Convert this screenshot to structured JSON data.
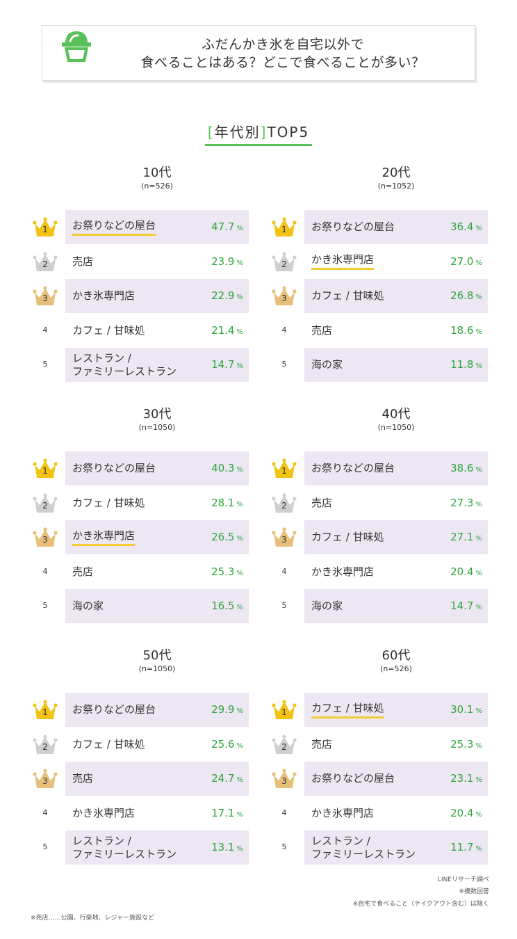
{
  "header": {
    "title_line1": "ふだんかき氷を自宅以外で",
    "title_line2": "食べることはある？どこで食べることが多い？",
    "icon": "shaved-ice-icon"
  },
  "subtitle": {
    "open": "[",
    "text": "年代別",
    "close": "]",
    "suffix": "TOP5"
  },
  "colors": {
    "accent_green": "#5ac05a",
    "value_green": "#2ba63a",
    "row_shade": "#ede6f3",
    "highlight_underline": "#f2cc30",
    "crown_gold": "#f2c315",
    "crown_silver": "#cfcfcf",
    "crown_bronze": "#e6c07a"
  },
  "chart_data": [
    {
      "type": "table",
      "title": "10代",
      "n": "(n=526)",
      "unit": "%",
      "items": [
        {
          "rank": "1",
          "label": [
            "お祭りなどの屋台"
          ],
          "value": "47.7",
          "highlight": true
        },
        {
          "rank": "2",
          "label": [
            "売店"
          ],
          "value": "23.9",
          "highlight": false
        },
        {
          "rank": "3",
          "label": [
            "かき氷専門店"
          ],
          "value": "22.9",
          "highlight": false
        },
        {
          "rank": "4",
          "label": [
            "カフェ / 甘味処"
          ],
          "value": "21.4",
          "highlight": false
        },
        {
          "rank": "5",
          "label": [
            "レストラン /",
            "ファミリーレストラン"
          ],
          "value": "14.7",
          "highlight": false
        }
      ]
    },
    {
      "type": "table",
      "title": "20代",
      "n": "(n=1052)",
      "unit": "%",
      "items": [
        {
          "rank": "1",
          "label": [
            "お祭りなどの屋台"
          ],
          "value": "36.4",
          "highlight": false
        },
        {
          "rank": "2",
          "label": [
            "かき氷専門店"
          ],
          "value": "27.0",
          "highlight": true
        },
        {
          "rank": "3",
          "label": [
            "カフェ / 甘味処"
          ],
          "value": "26.8",
          "highlight": false
        },
        {
          "rank": "4",
          "label": [
            "売店"
          ],
          "value": "18.6",
          "highlight": false
        },
        {
          "rank": "5",
          "label": [
            "海の家"
          ],
          "value": "11.8",
          "highlight": false
        }
      ]
    },
    {
      "type": "table",
      "title": "30代",
      "n": "(n=1050)",
      "unit": "%",
      "items": [
        {
          "rank": "1",
          "label": [
            "お祭りなどの屋台"
          ],
          "value": "40.3",
          "highlight": false
        },
        {
          "rank": "2",
          "label": [
            "カフェ / 甘味処"
          ],
          "value": "28.1",
          "highlight": false
        },
        {
          "rank": "3",
          "label": [
            "かき氷専門店"
          ],
          "value": "26.5",
          "highlight": true
        },
        {
          "rank": "4",
          "label": [
            "売店"
          ],
          "value": "25.3",
          "highlight": false
        },
        {
          "rank": "5",
          "label": [
            "海の家"
          ],
          "value": "16.5",
          "highlight": false
        }
      ]
    },
    {
      "type": "table",
      "title": "40代",
      "n": "(n=1050)",
      "unit": "%",
      "items": [
        {
          "rank": "1",
          "label": [
            "お祭りなどの屋台"
          ],
          "value": "38.6",
          "highlight": false
        },
        {
          "rank": "2",
          "label": [
            "売店"
          ],
          "value": "27.3",
          "highlight": false
        },
        {
          "rank": "3",
          "label": [
            "カフェ / 甘味処"
          ],
          "value": "27.1",
          "highlight": false
        },
        {
          "rank": "4",
          "label": [
            "かき氷専門店"
          ],
          "value": "20.4",
          "highlight": false
        },
        {
          "rank": "5",
          "label": [
            "海の家"
          ],
          "value": "14.7",
          "highlight": false
        }
      ]
    },
    {
      "type": "table",
      "title": "50代",
      "n": "(n=1050)",
      "unit": "%",
      "items": [
        {
          "rank": "1",
          "label": [
            "お祭りなどの屋台"
          ],
          "value": "29.9",
          "highlight": false
        },
        {
          "rank": "2",
          "label": [
            "カフェ / 甘味処"
          ],
          "value": "25.6",
          "highlight": false
        },
        {
          "rank": "3",
          "label": [
            "売店"
          ],
          "value": "24.7",
          "highlight": false
        },
        {
          "rank": "4",
          "label": [
            "かき氷専門店"
          ],
          "value": "17.1",
          "highlight": false
        },
        {
          "rank": "5",
          "label": [
            "レストラン /",
            "ファミリーレストラン"
          ],
          "value": "13.1",
          "highlight": false
        }
      ]
    },
    {
      "type": "table",
      "title": "60代",
      "n": "(n=526)",
      "unit": "%",
      "items": [
        {
          "rank": "1",
          "label": [
            "カフェ / 甘味処"
          ],
          "value": "30.1",
          "highlight": true
        },
        {
          "rank": "2",
          "label": [
            "売店"
          ],
          "value": "25.3",
          "highlight": false
        },
        {
          "rank": "3",
          "label": [
            "お祭りなどの屋台"
          ],
          "value": "23.1",
          "highlight": false
        },
        {
          "rank": "4",
          "label": [
            "かき氷専門店"
          ],
          "value": "20.4",
          "highlight": false
        },
        {
          "rank": "5",
          "label": [
            "レストラン /",
            "ファミリーレストラン"
          ],
          "value": "11.7",
          "highlight": false
        }
      ]
    }
  ],
  "footnotes": {
    "source": "LINEリサーチ調べ",
    "multiple": "※複数回答",
    "exclude": "※自宅で食べること（テイクアウト含む）は除く",
    "note": "※売店……公園、行楽地、レジャー施設など"
  }
}
